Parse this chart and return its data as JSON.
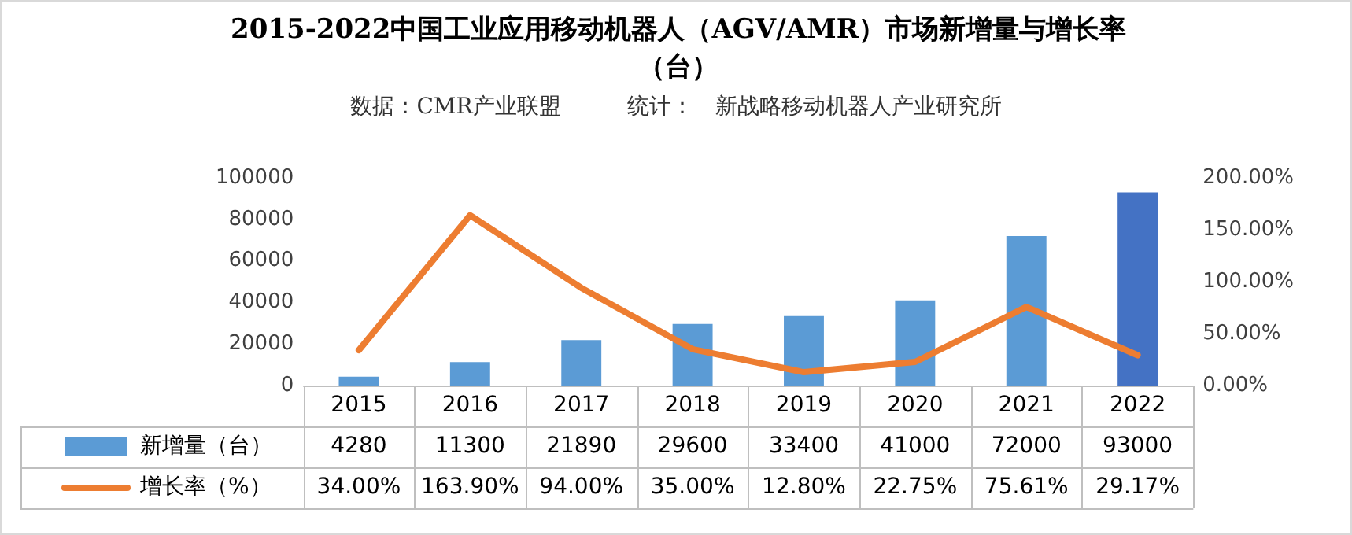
{
  "chart_data": {
    "type": "bar",
    "title": "2015-2022中国工业应用移动机器人（AGV/AMR）市场新增量与增长率（台）",
    "subtitle": "数据：CMR产业联盟　　　统计：　新战略移动机器人产业研究所",
    "categories": [
      "2015",
      "2016",
      "2017",
      "2018",
      "2019",
      "2020",
      "2021",
      "2022"
    ],
    "series": [
      {
        "name": "新增量（台）",
        "color": "#5b9bd5",
        "colors": [
          "#5b9bd5",
          "#5b9bd5",
          "#5b9bd5",
          "#5b9bd5",
          "#5b9bd5",
          "#5b9bd5",
          "#5b9bd5",
          "#4472c4"
        ],
        "values": [
          4280,
          11300,
          21890,
          29600,
          33400,
          41000,
          72000,
          93000
        ],
        "value_labels": [
          "4280",
          "11300",
          "21890",
          "29600",
          "33400",
          "41000",
          "72000",
          "93000"
        ]
      },
      {
        "name": "增长率（%）",
        "type": "line",
        "axis": "y2",
        "color": "#ed7d31",
        "values": [
          34,
          163.9,
          94,
          35,
          12.8,
          22.75,
          75.61,
          29.17
        ],
        "value_labels": [
          "34.00%",
          "163.90%",
          "94.00%",
          "35.00%",
          "12.80%",
          "22.75%",
          "75.61%",
          "29.17%"
        ]
      }
    ],
    "ylim": [
      0,
      100000
    ],
    "yticks": [
      0,
      20000,
      40000,
      60000,
      80000,
      100000
    ],
    "y2lim": [
      0,
      200
    ],
    "y2ticks": [
      {
        "value": 0,
        "label": "0.00%"
      },
      {
        "value": 50,
        "label": "50.00%"
      },
      {
        "value": 100,
        "label": "100.00%"
      },
      {
        "value": 150,
        "label": "150.00%"
      },
      {
        "value": 200,
        "label": "200.00%"
      }
    ],
    "grid": false,
    "legend": "bottom",
    "marker": "none",
    "line_style": "solid"
  }
}
